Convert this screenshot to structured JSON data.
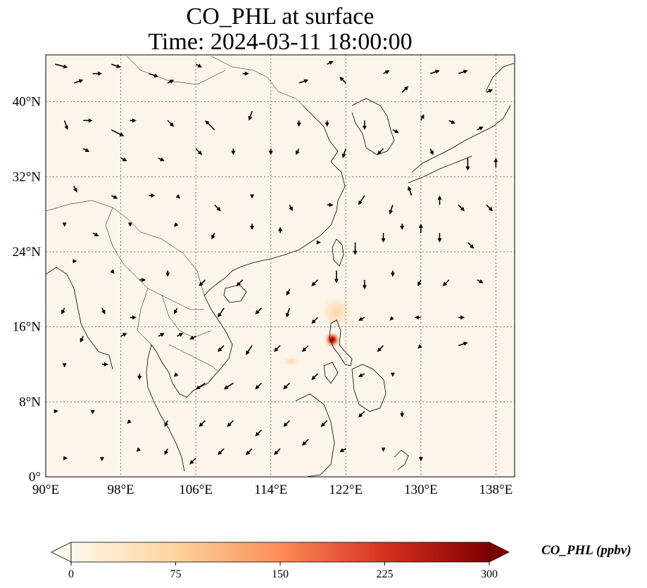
{
  "title": {
    "line1": "CO_PHL at surface",
    "line2": "Time: 2024-03-11 18:00:00"
  },
  "map": {
    "extent": {
      "lon_min": 90,
      "lon_max": 140,
      "lat_min": 0,
      "lat_max": 45
    },
    "lon_ticks": [
      {
        "value": 90,
        "label": "90°E"
      },
      {
        "value": 98,
        "label": "98°E"
      },
      {
        "value": 106,
        "label": "106°E"
      },
      {
        "value": 114,
        "label": "114°E"
      },
      {
        "value": 122,
        "label": "122°E"
      },
      {
        "value": 130,
        "label": "130°E"
      },
      {
        "value": 138,
        "label": "138°E"
      }
    ],
    "lat_ticks": [
      {
        "value": 0,
        "label": "0°"
      },
      {
        "value": 8,
        "label": "8°N"
      },
      {
        "value": 16,
        "label": "16°N"
      },
      {
        "value": 24,
        "label": "24°N"
      },
      {
        "value": 32,
        "label": "32°N"
      },
      {
        "value": 40,
        "label": "40°N"
      }
    ],
    "gridlines": true,
    "background_color": "#fdf5ea",
    "coastline_color": "#000000",
    "hotspot": {
      "lon": 120.3,
      "lat": 14.7,
      "value_ppbv": 300,
      "color": "#8b0000"
    },
    "secondary_plume": {
      "lon": 120.5,
      "lat": 17.0,
      "value_ppbv": 60
    }
  },
  "colorbar": {
    "label": "CO_PHL (ppbv)",
    "min": 0,
    "max": 300,
    "ticks": [
      {
        "value": 0,
        "label": "0"
      },
      {
        "value": 75,
        "label": "75"
      },
      {
        "value": 150,
        "label": "150"
      },
      {
        "value": 225,
        "label": "225"
      },
      {
        "value": 300,
        "label": "300"
      }
    ],
    "colormap": "OrRd",
    "colors": [
      "#fff7ec",
      "#fdd49e",
      "#fc8d59",
      "#d7301f",
      "#7f0000"
    ],
    "extend": "both"
  },
  "wind_vectors": [
    [
      91,
      44,
      2,
      -0.5
    ],
    [
      93,
      42,
      1.5,
      0.5
    ],
    [
      95,
      43,
      1.5,
      0
    ],
    [
      97,
      44,
      1.5,
      -0.5
    ],
    [
      101,
      43,
      1.5,
      -0.5
    ],
    [
      103,
      42,
      1,
      0.5
    ],
    [
      106,
      44,
      1,
      -0.5
    ],
    [
      111,
      43,
      1,
      0
    ],
    [
      117,
      42,
      1.5,
      0.5
    ],
    [
      120,
      44,
      1,
      0.5
    ],
    [
      122,
      42,
      -1,
      1
    ],
    [
      126,
      43,
      1,
      0.5
    ],
    [
      128,
      41,
      1,
      1
    ],
    [
      131,
      43,
      1.5,
      0.5
    ],
    [
      134,
      43,
      1.5,
      0.5
    ],
    [
      137,
      41,
      1,
      0.5
    ],
    [
      92,
      38,
      0.5,
      -1.5
    ],
    [
      94,
      38,
      1.5,
      0
    ],
    [
      97,
      37,
      2,
      -1
    ],
    [
      99,
      38,
      1,
      0
    ],
    [
      103,
      38,
      1,
      -1
    ],
    [
      108,
      37,
      -1.5,
      1.5
    ],
    [
      112,
      39,
      -0.5,
      -1.5
    ],
    [
      117,
      38,
      0,
      -1
    ],
    [
      120,
      38,
      0,
      -1
    ],
    [
      124,
      38,
      0,
      -1.5
    ],
    [
      127,
      37,
      1,
      -0.5
    ],
    [
      130,
      38,
      0.5,
      1
    ],
    [
      133,
      38,
      1,
      -0.5
    ],
    [
      136,
      37,
      1,
      0.5
    ],
    [
      94,
      35,
      1,
      -0.5
    ],
    [
      98,
      34,
      1,
      -0.5
    ],
    [
      102,
      34,
      1,
      -0.5
    ],
    [
      106,
      35,
      1,
      -1
    ],
    [
      110,
      35,
      0,
      -1
    ],
    [
      114,
      35,
      0,
      -1
    ],
    [
      117,
      35,
      -0.5,
      -1
    ],
    [
      122,
      35,
      -0.5,
      -1.5
    ],
    [
      126,
      35,
      -1,
      -1
    ],
    [
      131,
      35,
      0.5,
      -1
    ],
    [
      135,
      34,
      0,
      -2
    ],
    [
      138,
      33,
      0,
      1.5
    ],
    [
      93,
      31,
      0.5,
      -1
    ],
    [
      97,
      30,
      1,
      -0.5
    ],
    [
      101,
      30,
      1,
      0
    ],
    [
      104,
      30,
      0.5,
      -0.5
    ],
    [
      108,
      29,
      1,
      -1
    ],
    [
      112,
      30,
      0,
      -0.5
    ],
    [
      116,
      29,
      0.5,
      -1
    ],
    [
      120,
      29,
      1,
      0
    ],
    [
      124,
      30,
      -1,
      -1.5
    ],
    [
      127,
      29,
      -0.5,
      -1.5
    ],
    [
      129,
      30,
      -0.5,
      1.5
    ],
    [
      132,
      29,
      0,
      1.5
    ],
    [
      134,
      29,
      1,
      -1
    ],
    [
      137,
      29,
      1,
      -1
    ],
    [
      92,
      27,
      0,
      -0.5
    ],
    [
      95,
      26,
      1,
      -0.5
    ],
    [
      99,
      27,
      0,
      -0.5
    ],
    [
      104,
      27,
      -0.5,
      -0.5
    ],
    [
      108,
      26,
      -0.5,
      -1
    ],
    [
      112,
      27,
      0,
      -1
    ],
    [
      115,
      26,
      0,
      1
    ],
    [
      119,
      25,
      0.5,
      0
    ],
    [
      123,
      25,
      0,
      -2
    ],
    [
      126,
      26,
      0,
      -1.5
    ],
    [
      128,
      27,
      0,
      -1
    ],
    [
      130,
      26,
      0,
      1.5
    ],
    [
      132,
      26,
      0,
      -1.5
    ],
    [
      135,
      25,
      1,
      -1
    ],
    [
      93,
      23,
      0.5,
      0
    ],
    [
      97,
      22,
      0.5,
      -0.5
    ],
    [
      100,
      21,
      1,
      0
    ],
    [
      103,
      22,
      0,
      -1
    ],
    [
      107,
      21,
      -1,
      -1
    ],
    [
      111,
      21,
      -1,
      -1
    ],
    [
      116,
      20,
      -0.5,
      -1
    ],
    [
      119,
      21,
      -1,
      -1
    ],
    [
      121,
      22,
      0,
      -2
    ],
    [
      124,
      21,
      0,
      -1.5
    ],
    [
      127,
      22,
      0,
      -1
    ],
    [
      130,
      21,
      -0.5,
      -1
    ],
    [
      133,
      21,
      -1,
      -1
    ],
    [
      136,
      21,
      1,
      -0.5
    ],
    [
      92,
      18,
      -0.5,
      -1
    ],
    [
      96,
      18,
      0.5,
      -1
    ],
    [
      99,
      17,
      1,
      0
    ],
    [
      104,
      18,
      -0.5,
      -1
    ],
    [
      109,
      18,
      -1,
      -1.5
    ],
    [
      113,
      18,
      -1,
      -1
    ],
    [
      116,
      18,
      -0.5,
      -1.5
    ],
    [
      119,
      17,
      -1,
      -1
    ],
    [
      124,
      17,
      -1,
      -0.5
    ],
    [
      127,
      17,
      -0.5,
      -0.5
    ],
    [
      130,
      17,
      -1,
      0
    ],
    [
      134,
      17,
      1,
      0
    ],
    [
      94,
      15,
      -0.5,
      -1
    ],
    [
      98,
      15,
      1,
      0.5
    ],
    [
      102,
      15,
      1,
      0.5
    ],
    [
      104,
      15,
      1,
      0.5
    ],
    [
      106,
      15,
      -1,
      -0.5
    ],
    [
      109,
      14,
      -1,
      -1
    ],
    [
      112,
      14,
      -1,
      -1.5
    ],
    [
      115,
      14,
      -1,
      -1
    ],
    [
      118,
      14,
      -1,
      -1
    ],
    [
      126,
      14,
      -1,
      -1
    ],
    [
      130,
      14,
      -0.5,
      -0.5
    ],
    [
      134,
      14,
      1.5,
      0.5
    ],
    [
      92,
      12,
      0,
      -0.5
    ],
    [
      96,
      12,
      1,
      0
    ],
    [
      100,
      11,
      0,
      -1
    ],
    [
      104,
      11,
      -0.5,
      -0.5
    ],
    [
      107,
      10,
      -1.5,
      -1
    ],
    [
      110,
      10,
      -1.5,
      -1
    ],
    [
      113,
      10,
      -1,
      -1
    ],
    [
      116,
      10,
      -1,
      -1
    ],
    [
      119,
      11,
      -1,
      -1
    ],
    [
      124,
      11,
      -1,
      -0.5
    ],
    [
      127,
      11,
      0,
      -0.5
    ],
    [
      91,
      7,
      0.5,
      0
    ],
    [
      95,
      7,
      0,
      -0.5
    ],
    [
      99,
      6,
      -0.5,
      -0.5
    ],
    [
      103,
      6,
      -0.5,
      -1
    ],
    [
      107,
      6,
      -1,
      -1
    ],
    [
      110,
      6,
      -1,
      -1
    ],
    [
      113,
      5,
      -1,
      -1
    ],
    [
      116,
      6,
      -1,
      -1
    ],
    [
      120,
      6,
      -1,
      -1
    ],
    [
      124,
      7,
      -1,
      -1
    ],
    [
      128,
      7,
      0,
      -1
    ],
    [
      92,
      2,
      0.5,
      0
    ],
    [
      96,
      2,
      0,
      -0.5
    ],
    [
      100,
      3,
      -0.5,
      -0.5
    ],
    [
      103,
      3,
      -0.5,
      -1
    ],
    [
      106,
      2,
      -1,
      -1
    ],
    [
      109,
      3,
      -1,
      -1
    ],
    [
      112,
      3,
      -1,
      -1
    ],
    [
      115,
      3,
      -1,
      -1
    ],
    [
      118,
      4,
      -1,
      -1
    ],
    [
      122,
      3,
      -1,
      -0.5
    ],
    [
      126,
      3,
      0,
      -0.5
    ],
    [
      130,
      2,
      0,
      -0.5
    ]
  ]
}
